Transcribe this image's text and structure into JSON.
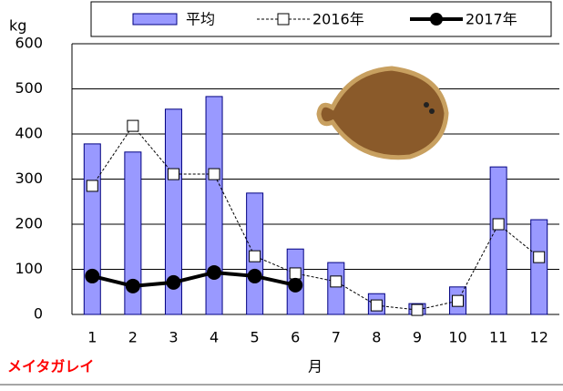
{
  "chart_data": {
    "type": "bar_line",
    "y_label": "kg",
    "x_label": "月",
    "annotation": "メイタガレイ",
    "categories": [
      "1",
      "2",
      "3",
      "4",
      "5",
      "6",
      "7",
      "8",
      "9",
      "10",
      "11",
      "12"
    ],
    "series": [
      {
        "name": "平均",
        "kind": "bar",
        "color": "#9999ff",
        "values": [
          378,
          360,
          455,
          483,
          269,
          145,
          115,
          46,
          24,
          61,
          327,
          210
        ]
      },
      {
        "name": "2016年",
        "kind": "line-dashed",
        "color": "#000000",
        "values": [
          285,
          418,
          311,
          311,
          129,
          91,
          73,
          20,
          10,
          30,
          200,
          127
        ]
      },
      {
        "name": "2017年",
        "kind": "line-thick",
        "color": "#000000",
        "values": [
          85,
          63,
          71,
          93,
          85,
          65,
          null,
          null,
          null,
          null,
          null,
          null
        ]
      }
    ],
    "ylim": [
      0,
      600
    ],
    "yticks": [
      0,
      100,
      200,
      300,
      400,
      500,
      600
    ],
    "grid": true
  }
}
